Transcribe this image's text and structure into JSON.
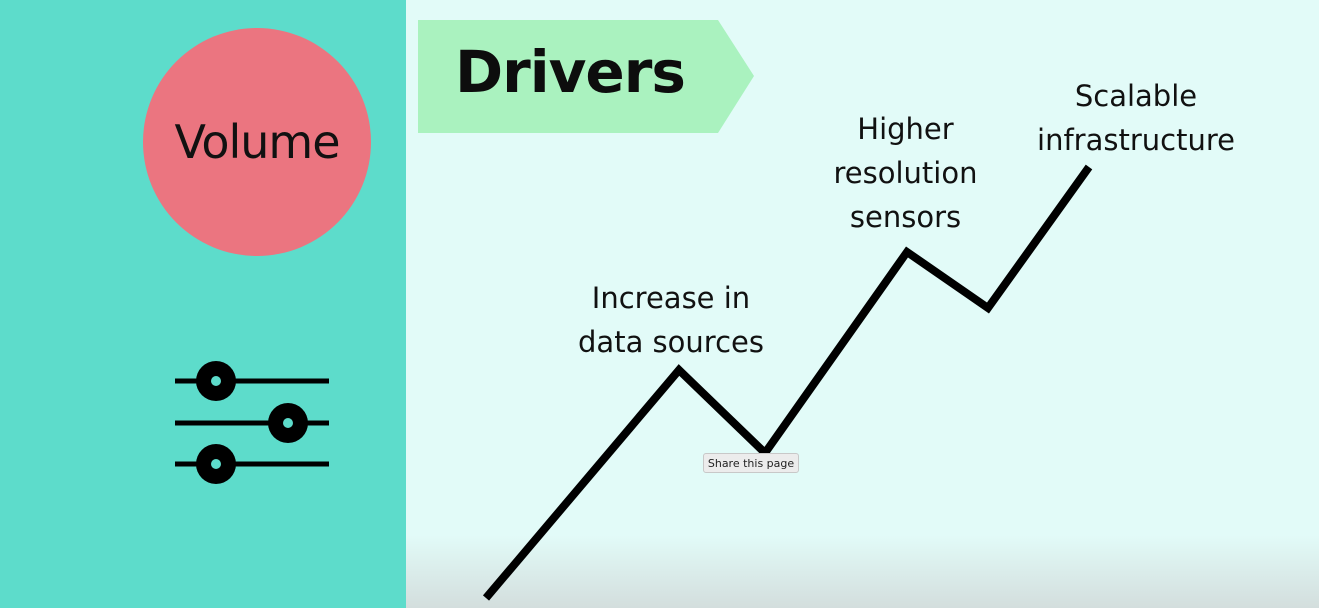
{
  "volume": {
    "label": "Volume"
  },
  "drivers": {
    "title": "Drivers"
  },
  "annotations": {
    "data_sources": [
      "Increase in",
      "data sources"
    ],
    "sensors": [
      "Higher",
      "resolution",
      "sensors"
    ],
    "infrastructure": [
      "Scalable",
      "infrastructure"
    ]
  },
  "tooltip": {
    "text": "Share this page"
  },
  "colors": {
    "left_panel": "#5ddccb",
    "circle": "#eb7580",
    "banner": "#aaf2bf",
    "right_panel": "#e2fbf8",
    "line": "#000000"
  },
  "icons": {
    "left": "sliders-icon"
  }
}
